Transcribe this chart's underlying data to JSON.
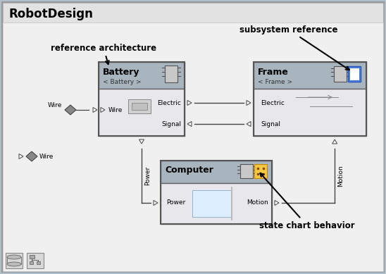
{
  "title": "RobotDesign",
  "fig_w": 5.48,
  "fig_h": 3.89,
  "bg_color": "#b0bfcc",
  "outer_bg": "#c8d3db",
  "inner_bg": "#f0f0f0",
  "title_bar_color": "#e2e2e2",
  "block_header": "#a8b4be",
  "block_body": "#eaeaea",
  "annotation_ref_arch": "reference architecture",
  "annotation_subsys_ref": "subsystem reference",
  "annotation_state_chart": "state chart behavior"
}
